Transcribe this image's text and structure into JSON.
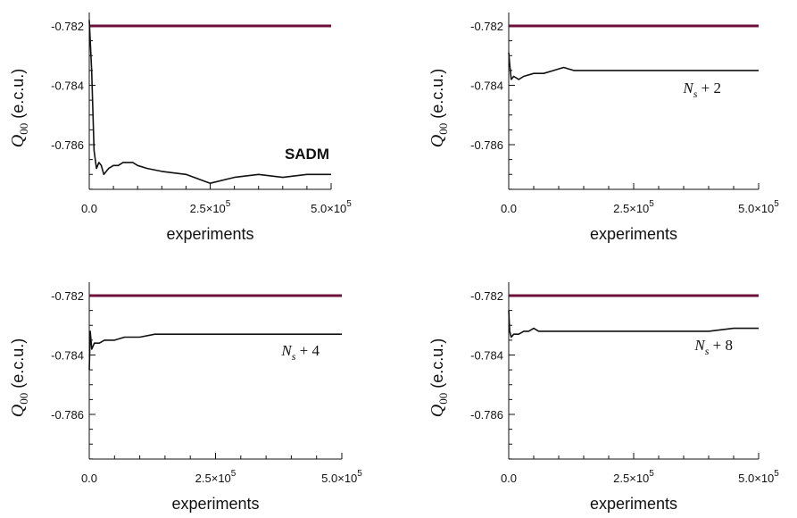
{
  "colors": {
    "reference_line": "#6b1038",
    "data_line": "#111111",
    "axes": "#111111"
  },
  "chart_data": [
    {
      "type": "line",
      "xlabel": "experiments",
      "ylabel_symbol": "Q",
      "ylabel_subscript": "00",
      "ylabel_unit": " (e.c.u.)",
      "xlim": [
        0,
        500000
      ],
      "ylim": [
        -0.7875,
        -0.7815
      ],
      "x_ticks": [
        {
          "value": 0,
          "mantissa": "0.0",
          "exponent": ""
        },
        {
          "value": 250000,
          "mantissa": "2.5×10",
          "exponent": "5"
        },
        {
          "value": 500000,
          "mantissa": "5.0×10",
          "exponent": "5"
        }
      ],
      "y_ticks": [
        {
          "value": -0.782,
          "label": "-0.782"
        },
        {
          "value": -0.784,
          "label": "-0.784"
        },
        {
          "value": -0.786,
          "label": "-0.786"
        }
      ],
      "annotation": {
        "style": "bold",
        "text": "SADM",
        "sub": "",
        "suffix": ""
      },
      "reference_y": -0.782,
      "series": [
        {
          "x": [
            0,
            2000,
            5000,
            10000,
            15000,
            20000,
            25000,
            30000,
            40000,
            50000,
            60000,
            70000,
            80000,
            90000,
            100000,
            120000,
            150000,
            200000,
            250000,
            300000,
            350000,
            400000,
            450000,
            500000
          ],
          "y": [
            -0.7818,
            -0.7825,
            -0.7835,
            -0.7862,
            -0.7868,
            -0.7866,
            -0.7867,
            -0.787,
            -0.7868,
            -0.7867,
            -0.7867,
            -0.7866,
            -0.7866,
            -0.7866,
            -0.7867,
            -0.7868,
            -0.7869,
            -0.787,
            -0.7873,
            -0.7871,
            -0.787,
            -0.7871,
            -0.787,
            -0.787
          ]
        }
      ]
    },
    {
      "type": "line",
      "xlabel": "experiments",
      "ylabel_symbol": "Q",
      "ylabel_subscript": "00",
      "ylabel_unit": " (e.c.u.)",
      "xlim": [
        0,
        500000
      ],
      "ylim": [
        -0.7875,
        -0.7815
      ],
      "x_ticks": [
        {
          "value": 0,
          "mantissa": "0.0",
          "exponent": ""
        },
        {
          "value": 250000,
          "mantissa": "2.5×10",
          "exponent": "5"
        },
        {
          "value": 500000,
          "mantissa": "5.0×10",
          "exponent": "5"
        }
      ],
      "y_ticks": [
        {
          "value": -0.782,
          "label": "-0.782"
        },
        {
          "value": -0.784,
          "label": "-0.784"
        },
        {
          "value": -0.786,
          "label": "-0.786"
        }
      ],
      "annotation": {
        "style": "italic",
        "text": "N",
        "sub": "s",
        "suffix": " + 2"
      },
      "reference_y": -0.782,
      "series": [
        {
          "x": [
            0,
            2000,
            5000,
            10000,
            20000,
            30000,
            50000,
            70000,
            90000,
            110000,
            130000,
            150000,
            200000,
            250000,
            300000,
            350000,
            400000,
            450000,
            500000
          ],
          "y": [
            -0.7829,
            -0.7833,
            -0.7838,
            -0.7837,
            -0.7838,
            -0.7837,
            -0.7836,
            -0.7836,
            -0.7835,
            -0.7834,
            -0.7835,
            -0.7835,
            -0.7835,
            -0.7835,
            -0.7835,
            -0.7835,
            -0.7835,
            -0.7835,
            -0.7835
          ]
        }
      ]
    },
    {
      "type": "line",
      "xlabel": "experiments",
      "ylabel_symbol": "Q",
      "ylabel_subscript": "00",
      "ylabel_unit": " (e.c.u.)",
      "xlim": [
        0,
        500000
      ],
      "ylim": [
        -0.7875,
        -0.7815
      ],
      "x_ticks": [
        {
          "value": 0,
          "mantissa": "0.0",
          "exponent": ""
        },
        {
          "value": 250000,
          "mantissa": "2.5×10",
          "exponent": "5"
        },
        {
          "value": 500000,
          "mantissa": "5.0×10",
          "exponent": "5"
        }
      ],
      "y_ticks": [
        {
          "value": -0.782,
          "label": "-0.782"
        },
        {
          "value": -0.784,
          "label": "-0.784"
        },
        {
          "value": -0.786,
          "label": "-0.786"
        }
      ],
      "annotation": {
        "style": "italic",
        "text": "N",
        "sub": "s",
        "suffix": " + 4"
      },
      "reference_y": -0.782,
      "series": [
        {
          "x": [
            0,
            2000,
            5000,
            10000,
            20000,
            30000,
            50000,
            70000,
            100000,
            130000,
            150000,
            200000,
            250000,
            300000,
            350000,
            400000,
            450000,
            500000
          ],
          "y": [
            -0.7845,
            -0.7832,
            -0.7838,
            -0.7836,
            -0.7836,
            -0.7835,
            -0.7835,
            -0.7834,
            -0.7834,
            -0.7833,
            -0.7833,
            -0.7833,
            -0.7833,
            -0.7833,
            -0.7833,
            -0.7833,
            -0.7833,
            -0.7833
          ]
        }
      ]
    },
    {
      "type": "line",
      "xlabel": "experiments",
      "ylabel_symbol": "Q",
      "ylabel_subscript": "00",
      "ylabel_unit": " (e.c.u.)",
      "xlim": [
        0,
        500000
      ],
      "ylim": [
        -0.7875,
        -0.7815
      ],
      "x_ticks": [
        {
          "value": 0,
          "mantissa": "0.0",
          "exponent": ""
        },
        {
          "value": 250000,
          "mantissa": "2.5×10",
          "exponent": "5"
        },
        {
          "value": 500000,
          "mantissa": "5.0×10",
          "exponent": "5"
        }
      ],
      "y_ticks": [
        {
          "value": -0.782,
          "label": "-0.782"
        },
        {
          "value": -0.784,
          "label": "-0.784"
        },
        {
          "value": -0.786,
          "label": "-0.786"
        }
      ],
      "annotation": {
        "style": "italic",
        "text": "N",
        "sub": "s",
        "suffix": " + 8"
      },
      "reference_y": -0.782,
      "series": [
        {
          "x": [
            0,
            2000,
            5000,
            10000,
            20000,
            30000,
            40000,
            50000,
            60000,
            80000,
            100000,
            150000,
            200000,
            250000,
            300000,
            350000,
            400000,
            450000,
            500000
          ],
          "y": [
            -0.7825,
            -0.7832,
            -0.7834,
            -0.7833,
            -0.7833,
            -0.7832,
            -0.7832,
            -0.7831,
            -0.7832,
            -0.7832,
            -0.7832,
            -0.7832,
            -0.7832,
            -0.7832,
            -0.7832,
            -0.7832,
            -0.7832,
            -0.7831,
            -0.7831
          ]
        }
      ]
    }
  ]
}
